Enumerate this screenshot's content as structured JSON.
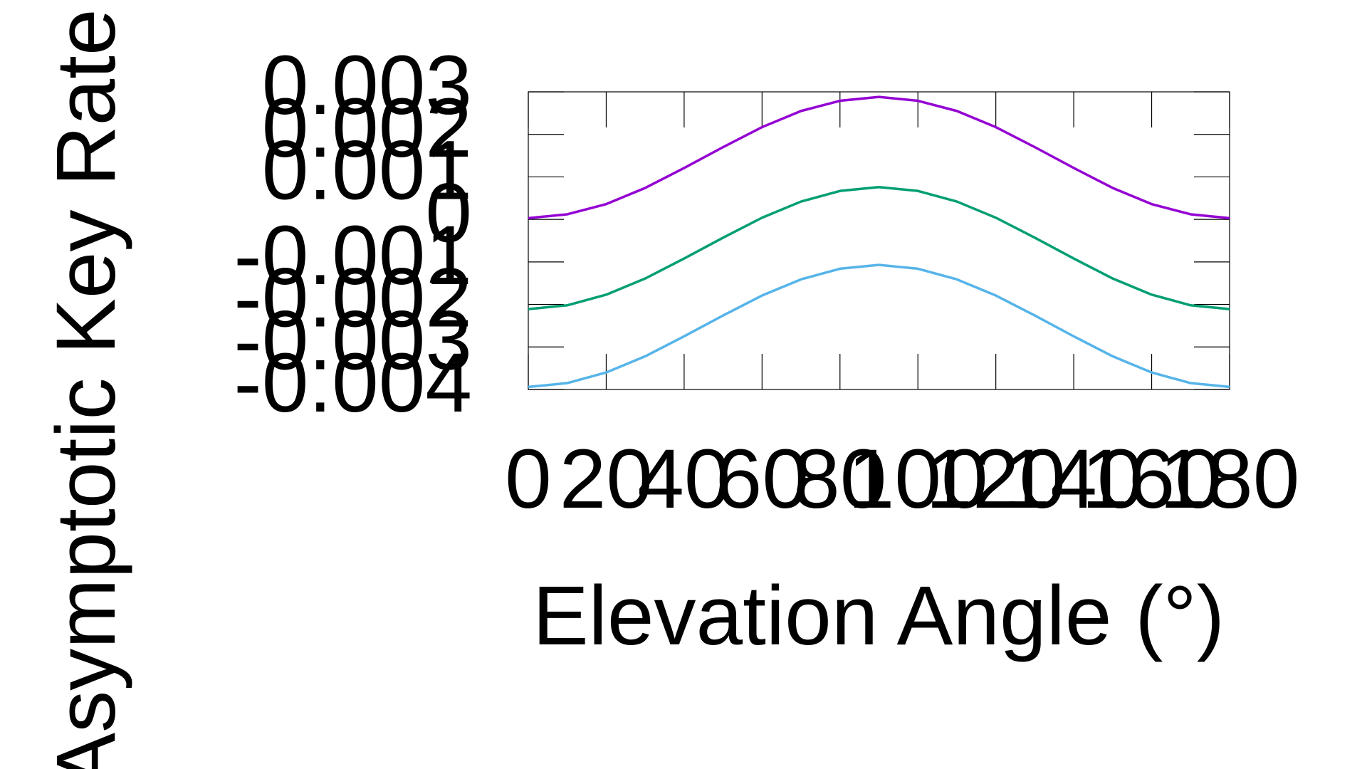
{
  "chart_data": {
    "type": "line",
    "ylabel": "Asymptotic Key Rate",
    "xlabel": "Elevation Angle (°)",
    "x": [
      0,
      10,
      20,
      30,
      40,
      50,
      60,
      70,
      80,
      90,
      100,
      110,
      120,
      130,
      140,
      150,
      160,
      170,
      180
    ],
    "series": [
      {
        "color": "#9400d3",
        "values": [
          3e-05,
          0.00012,
          0.00036,
          0.00074,
          0.00121,
          0.0017,
          0.00217,
          0.00255,
          0.00279,
          0.00288,
          0.00279,
          0.00255,
          0.00217,
          0.0017,
          0.00121,
          0.00074,
          0.00036,
          0.00012,
          3e-05
        ]
      },
      {
        "color": "#009e73",
        "values": [
          -0.00211,
          -0.00202,
          -0.00177,
          -0.00139,
          -0.00092,
          -0.00043,
          4e-05,
          0.00042,
          0.00067,
          0.00076,
          0.00067,
          0.00042,
          4e-05,
          -0.00043,
          -0.00092,
          -0.00139,
          -0.00177,
          -0.00202,
          -0.00211
        ]
      },
      {
        "color": "#56b4e9",
        "values": [
          -0.00394,
          -0.00385,
          -0.0036,
          -0.00322,
          -0.00275,
          -0.00226,
          -0.00179,
          -0.00141,
          -0.00116,
          -0.00107,
          -0.00116,
          -0.00141,
          -0.00179,
          -0.00226,
          -0.00275,
          -0.00322,
          -0.0036,
          -0.00385,
          -0.00394
        ]
      }
    ],
    "xlim": [
      0,
      180
    ],
    "xticks": [
      0,
      20,
      40,
      60,
      80,
      100,
      120,
      140,
      160,
      180
    ],
    "ylim": [
      -0.004,
      0.003
    ],
    "yticks": [
      -0.004,
      -0.003,
      -0.002,
      -0.001,
      0,
      0.001,
      0.002,
      0.003
    ],
    "grid": false
  }
}
